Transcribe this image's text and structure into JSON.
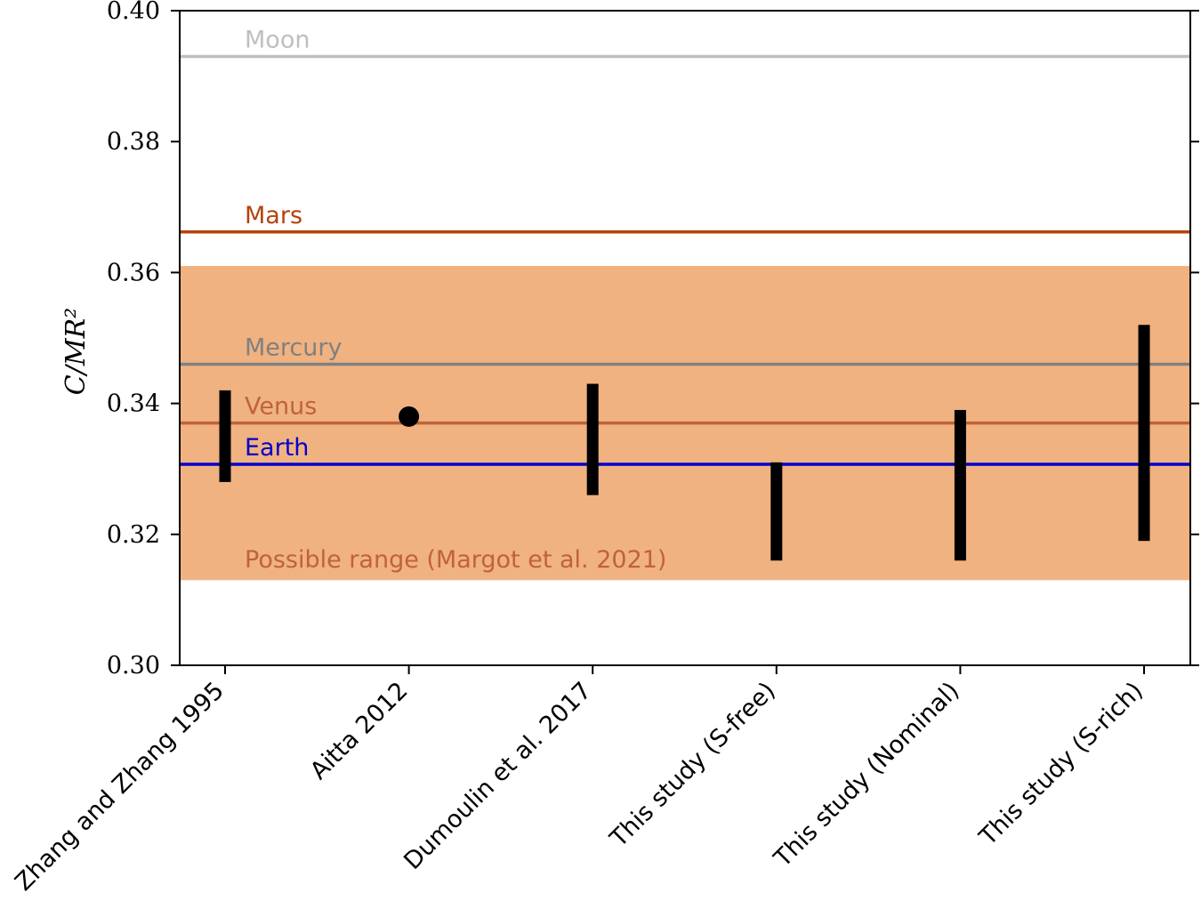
{
  "chart_data": {
    "type": "scatter",
    "ylabel": "C/MR²",
    "ylim": [
      0.3,
      0.4
    ],
    "yticks": [
      "0.30",
      "0.32",
      "0.34",
      "0.36",
      "0.38",
      "0.40"
    ],
    "categories": [
      "Zhang and Zhang 1995",
      "Aitta 2012",
      "Dumoulin et al. 2017",
      "This study (S-free)",
      "This study (Nominal)",
      "This study (S-rich)"
    ],
    "estimates": [
      {
        "category": "Zhang and Zhang 1995",
        "kind": "range",
        "low": 0.328,
        "high": 0.342
      },
      {
        "category": "Aitta 2012",
        "kind": "point",
        "value": 0.338
      },
      {
        "category": "Dumoulin et al. 2017",
        "kind": "range",
        "low": 0.326,
        "high": 0.343
      },
      {
        "category": "This study (S-free)",
        "kind": "range",
        "low": 0.316,
        "high": 0.331
      },
      {
        "category": "This study (Nominal)",
        "kind": "range",
        "low": 0.316,
        "high": 0.339
      },
      {
        "category": "This study (S-rich)",
        "kind": "range",
        "low": 0.319,
        "high": 0.352
      }
    ],
    "reference_lines": [
      {
        "label": "Moon",
        "value": 0.393,
        "color": "#bfbfbf"
      },
      {
        "label": "Mars",
        "value": 0.3662,
        "color": "#b5420a"
      },
      {
        "label": "Mercury",
        "value": 0.346,
        "color": "#808080"
      },
      {
        "label": "Venus",
        "value": 0.337,
        "color": "#c0623a"
      },
      {
        "label": "Earth",
        "value": 0.3307,
        "color": "#0000cc"
      }
    ],
    "band": {
      "label": "Possible range (Margot et al. 2021)",
      "low": 0.313,
      "high": 0.361,
      "color": "#f0b281",
      "text_color": "#c0623a"
    },
    "grid": false,
    "legend": "none"
  }
}
